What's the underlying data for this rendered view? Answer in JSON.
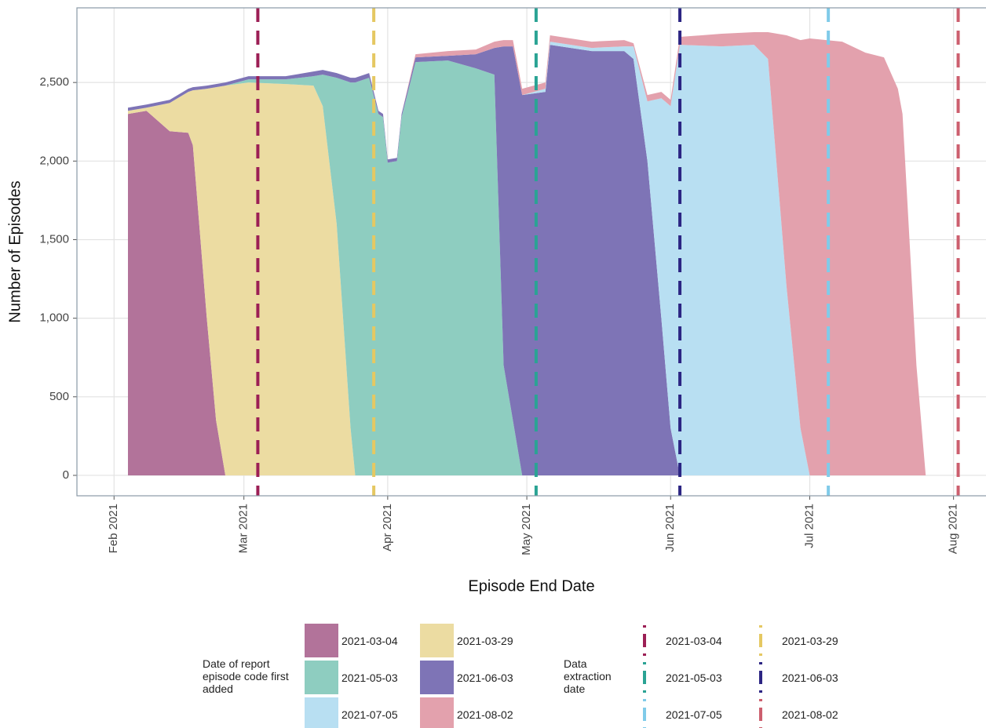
{
  "chart_data": {
    "type": "stacked_area",
    "x_label": "Episode End Date",
    "y_label": "Number of Episodes",
    "legend_title": "Date of report episode code first added",
    "x": [
      "2021-02-04",
      "2021-02-08",
      "2021-02-13",
      "2021-02-17",
      "2021-02-18",
      "2021-02-21",
      "2021-02-23",
      "2021-02-25",
      "2021-03-02",
      "2021-03-10",
      "2021-03-16",
      "2021-03-18",
      "2021-03-21",
      "2021-03-24",
      "2021-03-25",
      "2021-03-28",
      "2021-03-30",
      "2021-03-31",
      "2021-04-01",
      "2021-04-03",
      "2021-04-04",
      "2021-04-07",
      "2021-04-14",
      "2021-04-20",
      "2021-04-24",
      "2021-04-26",
      "2021-04-28",
      "2021-04-30",
      "2021-05-05",
      "2021-05-06",
      "2021-05-15",
      "2021-05-22",
      "2021-05-24",
      "2021-05-27",
      "2021-05-30",
      "2021-06-01",
      "2021-06-03",
      "2021-06-12",
      "2021-06-19",
      "2021-06-22",
      "2021-06-26",
      "2021-06-29",
      "2021-07-01",
      "2021-07-08",
      "2021-07-13",
      "2021-07-17",
      "2021-07-20",
      "2021-07-21",
      "2021-07-24",
      "2021-07-26"
    ],
    "series": [
      {
        "name": "2021-03-04",
        "color": "#b2739a",
        "values": [
          2300,
          2320,
          2190,
          2180,
          2100,
          1000,
          350,
          0,
          0,
          0,
          0,
          0,
          0,
          0,
          0,
          0,
          0,
          0,
          0,
          0,
          0,
          0,
          0,
          0,
          0,
          0,
          0,
          0,
          0,
          0,
          0,
          0,
          0,
          0,
          0,
          0,
          0,
          0,
          0,
          0,
          0,
          0,
          0,
          0,
          0,
          0,
          0,
          0,
          0,
          0
        ]
      },
      {
        "name": "2021-03-29",
        "color": "#ecdca2",
        "values": [
          20,
          20,
          180,
          260,
          350,
          1460,
          2120,
          2480,
          2500,
          2490,
          2480,
          2350,
          1600,
          300,
          0,
          0,
          0,
          0,
          0,
          0,
          0,
          0,
          0,
          0,
          0,
          0,
          0,
          0,
          0,
          0,
          0,
          0,
          0,
          0,
          0,
          0,
          0,
          0,
          0,
          0,
          0,
          0,
          0,
          0,
          0,
          0,
          0,
          0,
          0,
          0
        ]
      },
      {
        "name": "2021-05-03",
        "color": "#8ecdc0",
        "values": [
          0,
          0,
          0,
          0,
          0,
          0,
          0,
          0,
          20,
          30,
          60,
          200,
          930,
          2200,
          2500,
          2530,
          2300,
          2280,
          1990,
          2000,
          2280,
          2630,
          2640,
          2590,
          2550,
          700,
          350,
          0,
          0,
          0,
          0,
          0,
          0,
          0,
          0,
          0,
          0,
          0,
          0,
          0,
          0,
          0,
          0,
          0,
          0,
          0,
          0,
          0,
          0,
          0
        ]
      },
      {
        "name": "2021-06-03",
        "color": "#7e74b6",
        "values": [
          20,
          20,
          20,
          20,
          20,
          20,
          20,
          20,
          20,
          20,
          30,
          30,
          30,
          30,
          30,
          30,
          20,
          20,
          20,
          20,
          20,
          30,
          30,
          90,
          170,
          2030,
          2380,
          2420,
          2440,
          2740,
          2700,
          2700,
          2650,
          2000,
          1000,
          300,
          0,
          0,
          0,
          0,
          0,
          0,
          0,
          0,
          0,
          0,
          0,
          0,
          0,
          0
        ]
      },
      {
        "name": "2021-07-05",
        "color": "#b8dff2",
        "values": [
          0,
          0,
          0,
          0,
          0,
          0,
          0,
          0,
          0,
          0,
          0,
          0,
          0,
          0,
          0,
          0,
          0,
          0,
          0,
          0,
          0,
          0,
          0,
          0,
          0,
          0,
          0,
          0,
          20,
          20,
          20,
          30,
          80,
          380,
          1400,
          2050,
          2740,
          2730,
          2740,
          2650,
          1200,
          300,
          0,
          0,
          0,
          0,
          0,
          0,
          0,
          0
        ]
      },
      {
        "name": "2021-08-02",
        "color": "#e3a1ad",
        "values": [
          0,
          0,
          0,
          0,
          0,
          0,
          0,
          0,
          0,
          0,
          0,
          0,
          0,
          0,
          0,
          0,
          0,
          0,
          0,
          0,
          0,
          20,
          30,
          30,
          40,
          40,
          40,
          40,
          40,
          40,
          40,
          40,
          20,
          40,
          40,
          40,
          50,
          80,
          80,
          170,
          1600,
          2470,
          2780,
          2760,
          2690,
          2660,
          2460,
          2300,
          700,
          0
        ]
      }
    ],
    "vlines": {
      "title": "Data extraction date",
      "dates": [
        "2021-03-04",
        "2021-03-29",
        "2021-05-03",
        "2021-06-03",
        "2021-07-05",
        "2021-08-02"
      ],
      "colors": [
        "#9c1f55",
        "#e5c862",
        "#2aa394",
        "#2c2583",
        "#80cbe9",
        "#cc5f6e"
      ]
    },
    "xlim": [
      "2021-01-24",
      "2021-08-08"
    ],
    "xticks": [
      {
        "value": "2021-02-01",
        "label": "Feb 2021"
      },
      {
        "value": "2021-03-01",
        "label": "Mar 2021"
      },
      {
        "value": "2021-04-01",
        "label": "Apr 2021"
      },
      {
        "value": "2021-05-01",
        "label": "May 2021"
      },
      {
        "value": "2021-06-01",
        "label": "Jun 2021"
      },
      {
        "value": "2021-07-01",
        "label": "Jul 2021"
      },
      {
        "value": "2021-08-01",
        "label": "Aug 2021"
      }
    ],
    "ylim": [
      -130,
      2975
    ],
    "yticks": [
      0,
      500,
      {
        "value": 1000,
        "label": "1,000"
      },
      {
        "value": 1500,
        "label": "1,500"
      },
      {
        "value": 2000,
        "label": "2,000"
      },
      {
        "value": 2500,
        "label": "2,500"
      }
    ],
    "grid": true
  }
}
